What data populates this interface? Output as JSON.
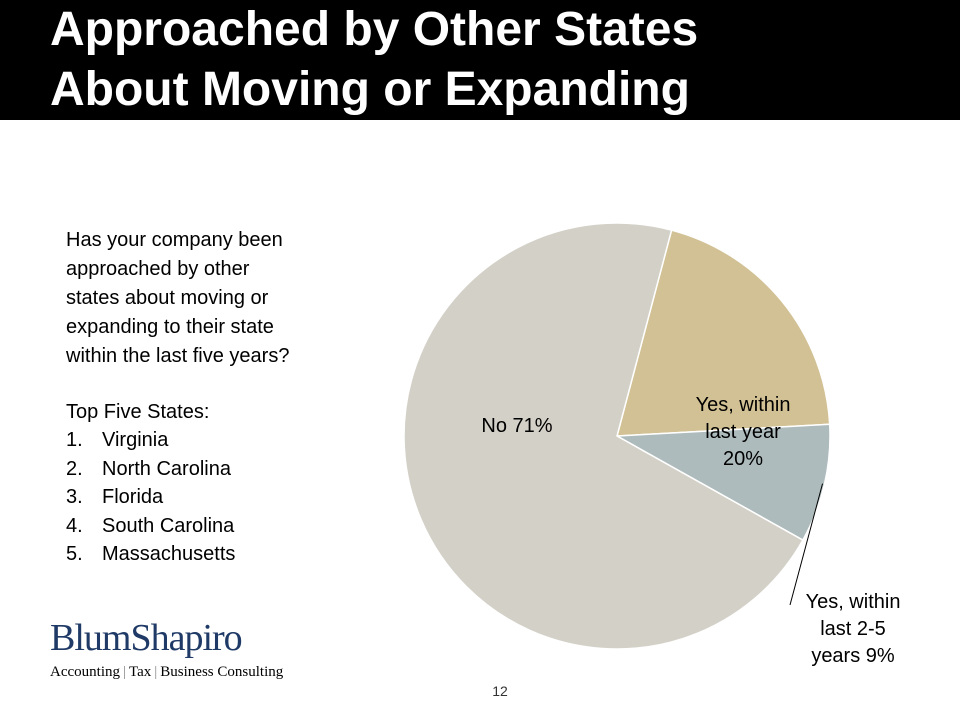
{
  "slide": {
    "title_lines": [
      "Approached by Other States",
      "About Moving or Expanding"
    ],
    "question_lines": [
      "Has your company been",
      "approached by other",
      "states about moving or",
      "expanding to their state",
      "within the last five years?"
    ],
    "states_heading": "Top Five States:",
    "states": [
      {
        "num": "1.",
        "name": "Virginia"
      },
      {
        "num": "2.",
        "name": "North Carolina"
      },
      {
        "num": "3.",
        "name": "Florida"
      },
      {
        "num": "4.",
        "name": "South Carolina"
      },
      {
        "num": "5.",
        "name": "Massachusetts"
      }
    ],
    "logo": {
      "name": "BlumShapiro",
      "tagline_parts": [
        "Accounting",
        "Tax",
        "Business Consulting"
      ]
    },
    "page_number": "12"
  },
  "chart_data": {
    "type": "pie",
    "slices": [
      {
        "name": "Yes, within last year",
        "value": 20,
        "color": "#d2c194",
        "label_lines": [
          "Yes, within",
          "last year",
          "20%"
        ]
      },
      {
        "name": "Yes, within last 2-5 years",
        "value": 9,
        "color": "#aebbbd",
        "label_lines": [
          "Yes, within",
          "last 2-5",
          "years 9%"
        ]
      },
      {
        "name": "No",
        "value": 71,
        "color": "#d3d0c7",
        "label_lines": [
          "No 71%"
        ]
      }
    ]
  }
}
